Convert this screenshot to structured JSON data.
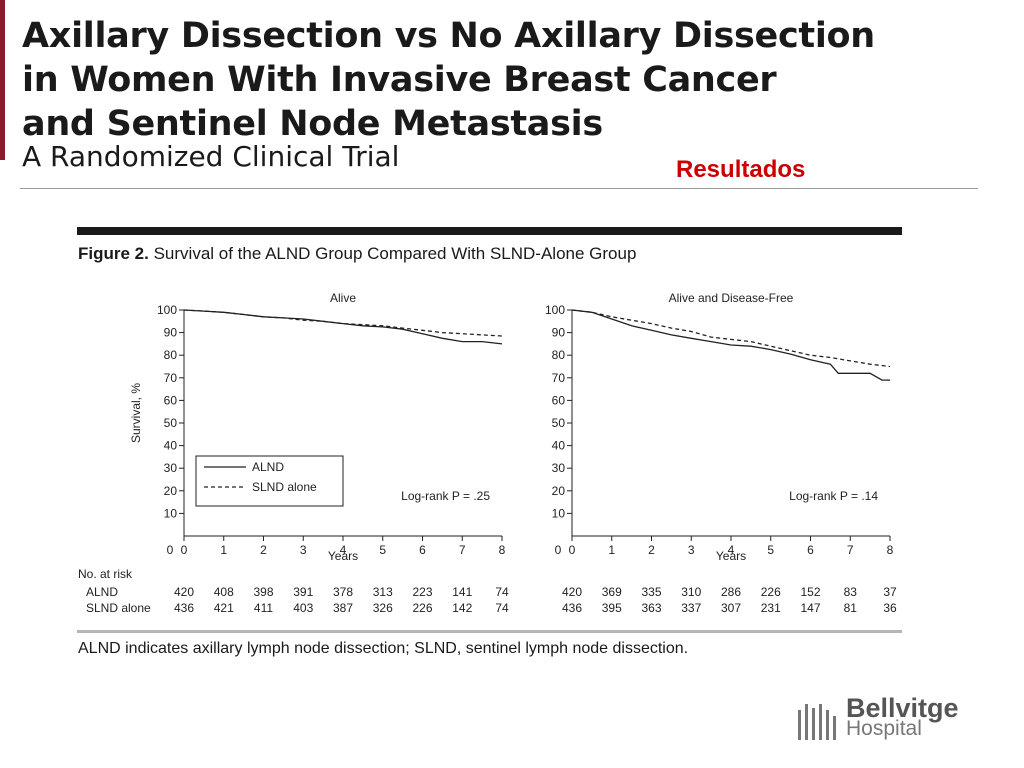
{
  "slide": {
    "title_lines": [
      "Axillary Dissection vs No Axillary Dissection",
      "in Women With Invasive Breast Cancer",
      "and Sentinel Node Metastasis"
    ],
    "subtitle": "A Randomized Clinical Trial",
    "section_label": "Resultados",
    "accent_color": "#cc0000",
    "figure_label": "Figure 2.",
    "figure_title": "Survival of the ALND Group Compared With SLND-Alone Group",
    "caption": "ALND indicates axillary lymph node dissection; SLND, sentinel lymph node dissection.",
    "logo": {
      "name": "Bellvitge",
      "sub": "Hospital"
    }
  },
  "chart_data": [
    {
      "type": "line",
      "title": "Alive",
      "xlabel": "Years",
      "ylabel": "Survival, %",
      "xlim": [
        0,
        8
      ],
      "ylim": [
        0,
        100
      ],
      "x_ticks": [
        0,
        1,
        2,
        3,
        4,
        5,
        6,
        7,
        8
      ],
      "y_ticks": [
        10,
        20,
        30,
        40,
        50,
        60,
        70,
        80,
        90,
        100
      ],
      "y_zero_label": "0",
      "legend": [
        {
          "name": "ALND",
          "style": "solid"
        },
        {
          "name": "SLND alone",
          "style": "dashed"
        }
      ],
      "legend_position": "bottom-left",
      "annotation": "Log-rank P = .25",
      "series": [
        {
          "name": "ALND",
          "style": "solid",
          "x": [
            0,
            0.5,
            1,
            1.5,
            2,
            2.5,
            3,
            3.5,
            4,
            4.5,
            5,
            5.5,
            6,
            6.5,
            7,
            7.5,
            8
          ],
          "y": [
            100,
            99.5,
            99,
            98,
            97,
            96.5,
            96,
            95,
            94,
            93,
            92.5,
            91.5,
            89.5,
            87.5,
            86,
            86,
            85
          ]
        },
        {
          "name": "SLND alone",
          "style": "dashed",
          "x": [
            0,
            0.5,
            1,
            1.5,
            2,
            2.5,
            3,
            3.5,
            4,
            4.5,
            5,
            5.5,
            6,
            6.5,
            7,
            7.5,
            8
          ],
          "y": [
            100,
            99.5,
            99,
            98,
            97,
            96.5,
            95.5,
            95,
            94,
            93.5,
            93,
            92,
            91,
            90,
            89.5,
            89,
            88.5
          ]
        }
      ],
      "at_risk": {
        "header": "No. at risk",
        "rows": [
          {
            "name": "ALND",
            "values": [
              "420",
              "408",
              "398",
              "391",
              "378",
              "313",
              "223",
              "141",
              "74"
            ]
          },
          {
            "name": "SLND alone",
            "values": [
              "436",
              "421",
              "411",
              "403",
              "387",
              "326",
              "226",
              "142",
              "74"
            ]
          }
        ]
      }
    },
    {
      "type": "line",
      "title": "Alive and Disease-Free",
      "xlabel": "Years",
      "ylabel": "",
      "xlim": [
        0,
        8
      ],
      "ylim": [
        0,
        100
      ],
      "x_ticks": [
        0,
        1,
        2,
        3,
        4,
        5,
        6,
        7,
        8
      ],
      "y_ticks": [
        10,
        20,
        30,
        40,
        50,
        60,
        70,
        80,
        90,
        100
      ],
      "y_zero_label": "0",
      "annotation": "Log-rank P = .14",
      "series": [
        {
          "name": "ALND",
          "style": "solid",
          "x": [
            0,
            0.5,
            1,
            1.5,
            2,
            2.5,
            3,
            3.5,
            4,
            4.5,
            5,
            5.5,
            6,
            6.5,
            6.7,
            7,
            7.5,
            7.8,
            8
          ],
          "y": [
            100,
            99,
            96,
            93,
            91,
            89,
            87.5,
            86,
            84.5,
            84,
            82.5,
            80.5,
            78,
            76,
            72,
            72,
            72,
            69,
            69
          ]
        },
        {
          "name": "SLND alone",
          "style": "dashed",
          "x": [
            0,
            0.5,
            1,
            1.5,
            2,
            2.5,
            3,
            3.5,
            4,
            4.5,
            5,
            5.5,
            6,
            6.5,
            7,
            7.5,
            8
          ],
          "y": [
            100,
            99,
            97,
            95.5,
            94,
            92,
            90.5,
            88,
            87,
            86,
            84,
            82,
            80,
            79,
            77.5,
            76,
            75
          ]
        }
      ],
      "at_risk": {
        "rows": [
          {
            "name": "ALND",
            "values": [
              "420",
              "369",
              "335",
              "310",
              "286",
              "226",
              "152",
              "83",
              "37"
            ]
          },
          {
            "name": "SLND alone",
            "values": [
              "436",
              "395",
              "363",
              "337",
              "307",
              "231",
              "147",
              "81",
              "36"
            ]
          }
        ]
      }
    }
  ]
}
